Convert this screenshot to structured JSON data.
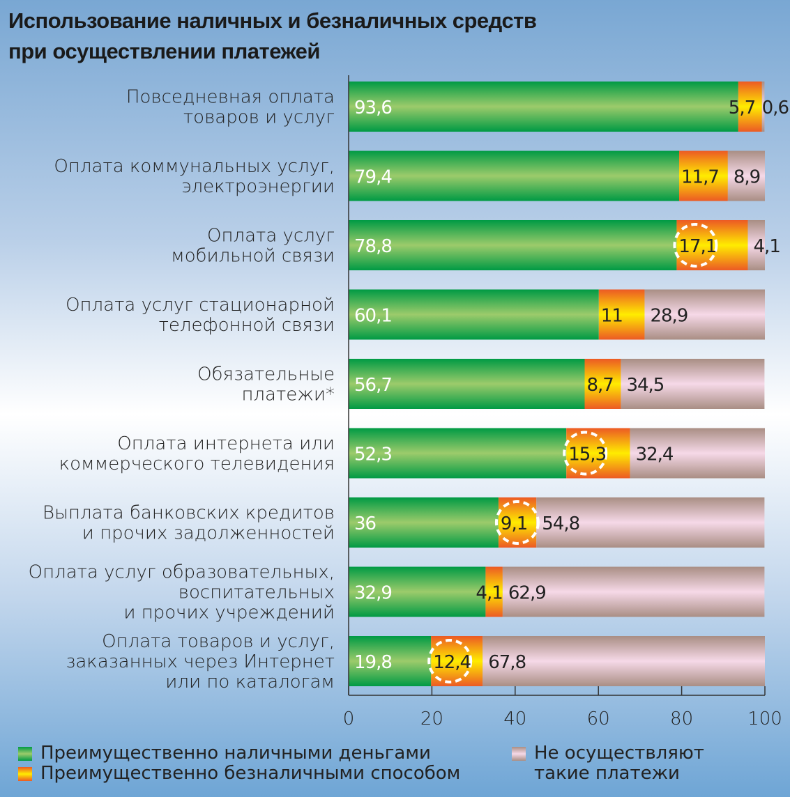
{
  "chart_data": {
    "type": "bar",
    "orientation": "horizontal",
    "stacked": true,
    "title": [
      "Использование наличных и безналичных средств",
      "при осуществлении платежей"
    ],
    "categories": [
      [
        "Повседневная оплата",
        "товаров и услуг"
      ],
      [
        "Оплата коммунальных услуг,",
        "электроэнергии"
      ],
      [
        "Оплата услуг",
        "мобильной связи"
      ],
      [
        "Оплата услуг стационарной",
        "телефонной связи"
      ],
      [
        "Обязательные",
        "платежи*"
      ],
      [
        "Оплата интернета или",
        "коммерческого телевидения"
      ],
      [
        "Выплата банковских кредитов",
        "и прочих задолженностей"
      ],
      [
        "Оплата услуг образовательных,",
        "воспитательных",
        "и прочих учреждений"
      ],
      [
        "Оплата товаров и услуг,",
        "заказанных через Интернет",
        "или по каталогам"
      ]
    ],
    "series": [
      {
        "name": "Преимущественно наличными деньгами",
        "values": [
          93.6,
          79.4,
          78.8,
          60.1,
          56.7,
          52.3,
          36,
          32.9,
          19.8
        ],
        "labels": [
          "93,6",
          "79,4",
          "78,8",
          "60,1",
          "56,7",
          "52,3",
          "36",
          "32,9",
          "19,8"
        ],
        "colors": [
          "#009a44",
          "#9ccb6b"
        ]
      },
      {
        "name": "Преимущественно безналичными способом",
        "values": [
          5.7,
          11.7,
          17.1,
          11,
          8.7,
          15.3,
          9.1,
          4.1,
          12.4
        ],
        "labels": [
          "5,7",
          "11,7",
          "17,1",
          "11",
          "8,7",
          "15,3",
          "9,1",
          "4,1",
          "12,4"
        ],
        "colors": [
          "#ec5a24",
          "#ffec00"
        ]
      },
      {
        "name": "Не осуществляют такие платежи",
        "values": [
          0.6,
          8.9,
          4.1,
          28.9,
          34.5,
          32.4,
          54.8,
          62.9,
          67.8
        ],
        "labels": [
          "0,6",
          "8,9",
          "4,1",
          "28,9",
          "34,5",
          "32,4",
          "54,8",
          "62,9",
          "67,8"
        ],
        "colors": [
          "#a98e84",
          "#f6d9e8"
        ]
      }
    ],
    "highlighted_cashless": [
      false,
      false,
      true,
      false,
      false,
      true,
      true,
      false,
      true
    ],
    "xlim": [
      0,
      100
    ],
    "xticks": [
      "0",
      "20",
      "40",
      "60",
      "80",
      "100"
    ],
    "grid": false,
    "legend_position": "bottom"
  }
}
